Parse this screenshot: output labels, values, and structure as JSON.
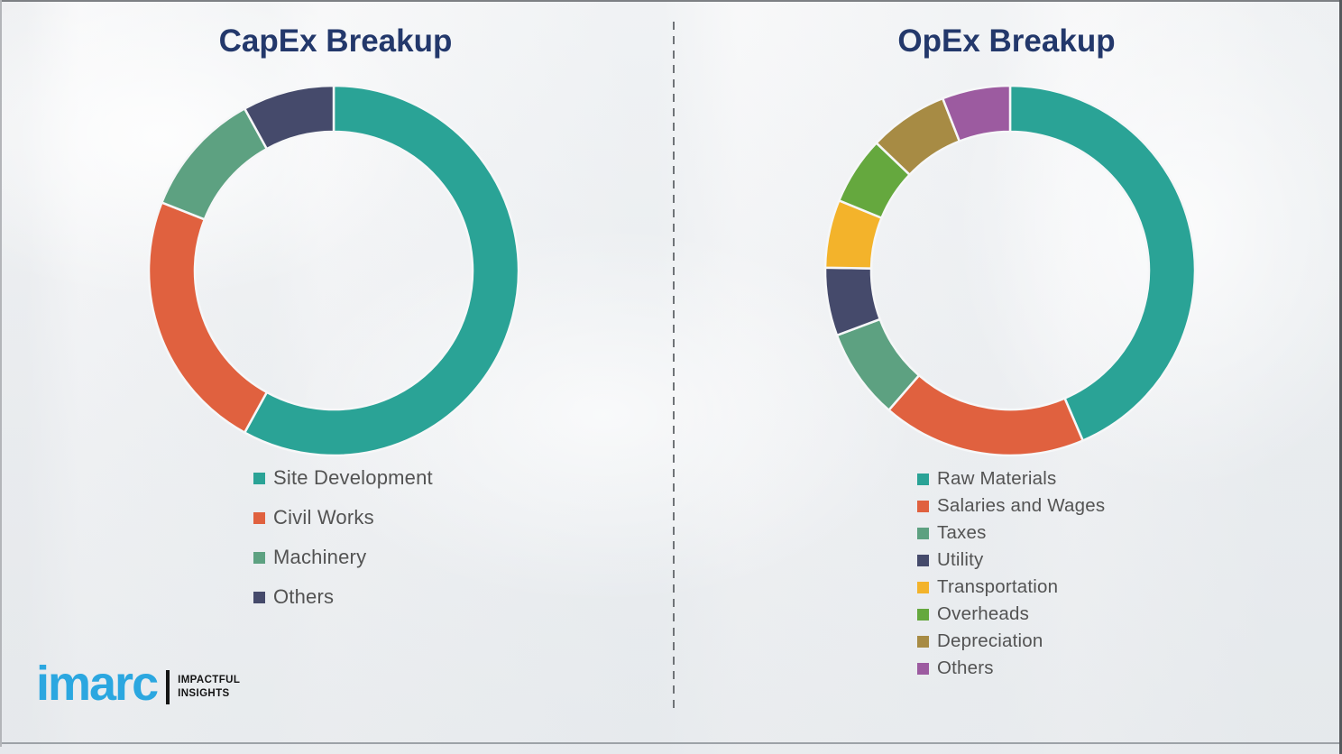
{
  "page": {
    "background_color": "#f1f2f4",
    "title_color": "#23386b",
    "legend_text_color": "#535353"
  },
  "chart_data": [
    {
      "type": "pie",
      "variant": "donut",
      "title": "CapEx Breakup",
      "labels": [
        "Site Development",
        "Civil Works",
        "Machinery",
        "Others"
      ],
      "values": [
        58,
        23,
        11,
        8
      ],
      "unit": "% (estimated from arc angles, no data labels shown)",
      "colors": [
        "#2aa396",
        "#e0613f",
        "#5da181",
        "#454a6b"
      ],
      "legend_position": "below",
      "start_angle_deg": 0,
      "direction": "clockwise",
      "title_color": "#23386b",
      "legend_text_color": "#535353"
    },
    {
      "type": "pie",
      "variant": "donut",
      "title": "OpEx Breakup",
      "labels": [
        "Raw Materials",
        "Salaries and Wages",
        "Taxes",
        "Utility",
        "Transportation",
        "Overheads",
        "Depreciation",
        "Others"
      ],
      "values": [
        44,
        18,
        8,
        6,
        6,
        6,
        7,
        6
      ],
      "unit": "% (estimated from arc angles, no data labels shown)",
      "colors": [
        "#2aa396",
        "#e0613f",
        "#5da181",
        "#454a6b",
        "#f3b32b",
        "#65a83e",
        "#a78b44",
        "#9c5ba0"
      ],
      "legend_position": "below",
      "start_angle_deg": 0,
      "direction": "clockwise",
      "title_color": "#23386b",
      "legend_text_color": "#535353"
    }
  ],
  "logo": {
    "brand": "imarc",
    "brand_color": "#2ba7e0",
    "tagline": [
      "IMPACTFUL",
      "INSIGHTS"
    ]
  }
}
